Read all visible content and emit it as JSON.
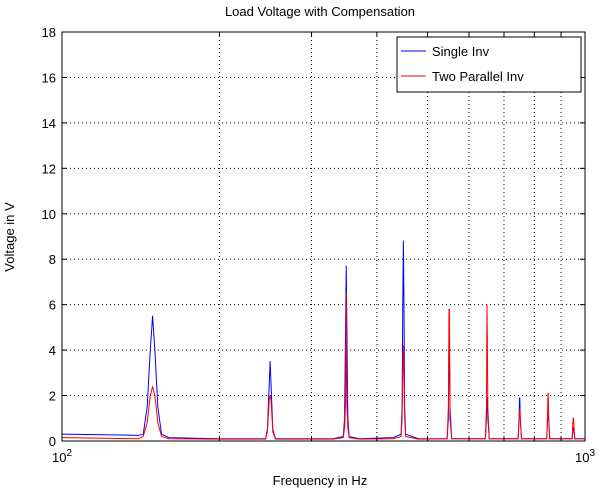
{
  "chart_data": {
    "type": "line",
    "title": "Load Voltage with Compensation",
    "xlabel": "Frequency in Hz",
    "ylabel": "Voltage in V",
    "x_scale": "log",
    "xlim": [
      100,
      1000
    ],
    "ylim": [
      0,
      18
    ],
    "x_ticks": [
      {
        "value": 100,
        "base": "10",
        "exp": "2"
      },
      {
        "value": 1000,
        "base": "10",
        "exp": "3"
      }
    ],
    "x_grid": [
      200,
      300,
      400,
      500,
      600,
      700,
      800,
      900
    ],
    "y_ticks": [
      0,
      2,
      4,
      6,
      8,
      10,
      12,
      14,
      16,
      18
    ],
    "grid": true,
    "legend_position": "top-right",
    "series": [
      {
        "name": "Single Inv",
        "color": "#0000ff",
        "points": [
          [
            100,
            0.3
          ],
          [
            140,
            0.25
          ],
          [
            143,
            0.3
          ],
          [
            145.5,
            1.5
          ],
          [
            147.5,
            4.0
          ],
          [
            149,
            5.5
          ],
          [
            150.5,
            4.0
          ],
          [
            152.5,
            1.5
          ],
          [
            155,
            0.3
          ],
          [
            160,
            0.15
          ],
          [
            200,
            0.1
          ],
          [
            245,
            0.1
          ],
          [
            247,
            0.5
          ],
          [
            249,
            2.5
          ],
          [
            250,
            3.5
          ],
          [
            251,
            2.5
          ],
          [
            253,
            0.5
          ],
          [
            256,
            0.1
          ],
          [
            330,
            0.1
          ],
          [
            345,
            0.2
          ],
          [
            347,
            1.0
          ],
          [
            348.5,
            5.0
          ],
          [
            349.5,
            7.7
          ],
          [
            350.5,
            5.0
          ],
          [
            352,
            1.0
          ],
          [
            354,
            0.2
          ],
          [
            370,
            0.1
          ],
          [
            430,
            0.15
          ],
          [
            445,
            0.3
          ],
          [
            447,
            1.5
          ],
          [
            448.5,
            6.5
          ],
          [
            449.5,
            8.8
          ],
          [
            450.5,
            6.5
          ],
          [
            452,
            1.5
          ],
          [
            454,
            0.3
          ],
          [
            480,
            0.1
          ],
          [
            545,
            0.1
          ],
          [
            548,
            1.0
          ],
          [
            549.5,
            4.4
          ],
          [
            550.5,
            4.4
          ],
          [
            552,
            1.0
          ],
          [
            556,
            0.1
          ],
          [
            645,
            0.1
          ],
          [
            648,
            1.0
          ],
          [
            649.5,
            1.9
          ],
          [
            650.5,
            1.9
          ],
          [
            652,
            1.0
          ],
          [
            656,
            0.1
          ],
          [
            745,
            0.1
          ],
          [
            748,
            1.0
          ],
          [
            749.5,
            1.9
          ],
          [
            750.5,
            1.9
          ],
          [
            752,
            1.0
          ],
          [
            756,
            0.1
          ],
          [
            845,
            0.1
          ],
          [
            848,
            1.0
          ],
          [
            849.5,
            1.1
          ],
          [
            850.5,
            1.1
          ],
          [
            852,
            1.0
          ],
          [
            856,
            0.1
          ],
          [
            945,
            0.1
          ],
          [
            948,
            0.5
          ],
          [
            949.5,
            0.6
          ],
          [
            950.5,
            0.6
          ],
          [
            952,
            0.5
          ],
          [
            956,
            0.1
          ],
          [
            1000,
            0.1
          ]
        ]
      },
      {
        "name": "Two Parallel Inv",
        "color": "#ff0000",
        "points": [
          [
            100,
            0.15
          ],
          [
            140,
            0.1
          ],
          [
            143,
            0.2
          ],
          [
            145.5,
            0.8
          ],
          [
            147.5,
            2.0
          ],
          [
            149,
            2.4
          ],
          [
            150.5,
            2.0
          ],
          [
            152.5,
            0.8
          ],
          [
            155,
            0.2
          ],
          [
            160,
            0.1
          ],
          [
            200,
            0.08
          ],
          [
            245,
            0.08
          ],
          [
            247,
            0.4
          ],
          [
            249,
            1.8
          ],
          [
            250,
            2.0
          ],
          [
            251,
            1.8
          ],
          [
            253,
            0.4
          ],
          [
            256,
            0.08
          ],
          [
            330,
            0.08
          ],
          [
            345,
            0.15
          ],
          [
            347,
            0.6
          ],
          [
            348.5,
            1.6
          ],
          [
            349.5,
            6.5
          ],
          [
            350.5,
            1.6
          ],
          [
            352,
            0.6
          ],
          [
            354,
            0.15
          ],
          [
            370,
            0.08
          ],
          [
            430,
            0.1
          ],
          [
            445,
            0.2
          ],
          [
            447,
            1.0
          ],
          [
            448.5,
            3.2
          ],
          [
            449.5,
            4.2
          ],
          [
            450.5,
            3.2
          ],
          [
            452,
            1.0
          ],
          [
            454,
            0.2
          ],
          [
            480,
            0.08
          ],
          [
            545,
            0.1
          ],
          [
            548,
            1.5
          ],
          [
            549.5,
            5.8
          ],
          [
            550.5,
            5.8
          ],
          [
            552,
            1.5
          ],
          [
            556,
            0.1
          ],
          [
            645,
            0.1
          ],
          [
            648,
            1.5
          ],
          [
            649.5,
            6.0
          ],
          [
            650.5,
            4.6
          ],
          [
            652,
            1.5
          ],
          [
            656,
            0.1
          ],
          [
            745,
            0.1
          ],
          [
            748,
            1.0
          ],
          [
            749.5,
            1.4
          ],
          [
            750.5,
            1.4
          ],
          [
            752,
            1.0
          ],
          [
            756,
            0.1
          ],
          [
            845,
            0.1
          ],
          [
            848,
            1.2
          ],
          [
            849.5,
            2.1
          ],
          [
            850.5,
            2.1
          ],
          [
            852,
            1.2
          ],
          [
            856,
            0.1
          ],
          [
            945,
            0.1
          ],
          [
            948,
            0.8
          ],
          [
            949.5,
            1.0
          ],
          [
            950.5,
            1.0
          ],
          [
            952,
            0.8
          ],
          [
            956,
            0.1
          ],
          [
            1000,
            0.1
          ]
        ]
      }
    ]
  }
}
